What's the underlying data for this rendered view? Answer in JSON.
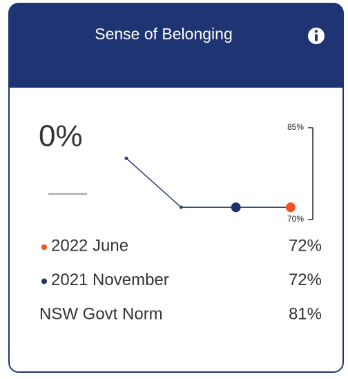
{
  "header": {
    "title": "Sense of Belonging"
  },
  "score": "0%",
  "chart_data": {
    "type": "line",
    "categories": [
      null,
      null,
      null,
      null
    ],
    "series": [
      {
        "color": "#2b3a7a",
        "values": [
          80,
          72,
          72,
          72
        ]
      }
    ],
    "point_colors": [
      "#2b3a7a",
      "#2b3a7a",
      "#1f2f6e",
      "#f4511e"
    ],
    "ylim": [
      70,
      85
    ],
    "yticks": [
      {
        "value": 85,
        "label": "85%"
      },
      {
        "value": 70,
        "label": "70%"
      }
    ]
  },
  "rows": [
    {
      "label": "2022 June",
      "value": "72%",
      "color": "#f4511e"
    },
    {
      "label": "2021 November",
      "value": "72%",
      "color": "#1f2f6e"
    },
    {
      "label": "NSW Govt Norm",
      "value": "81%"
    }
  ]
}
